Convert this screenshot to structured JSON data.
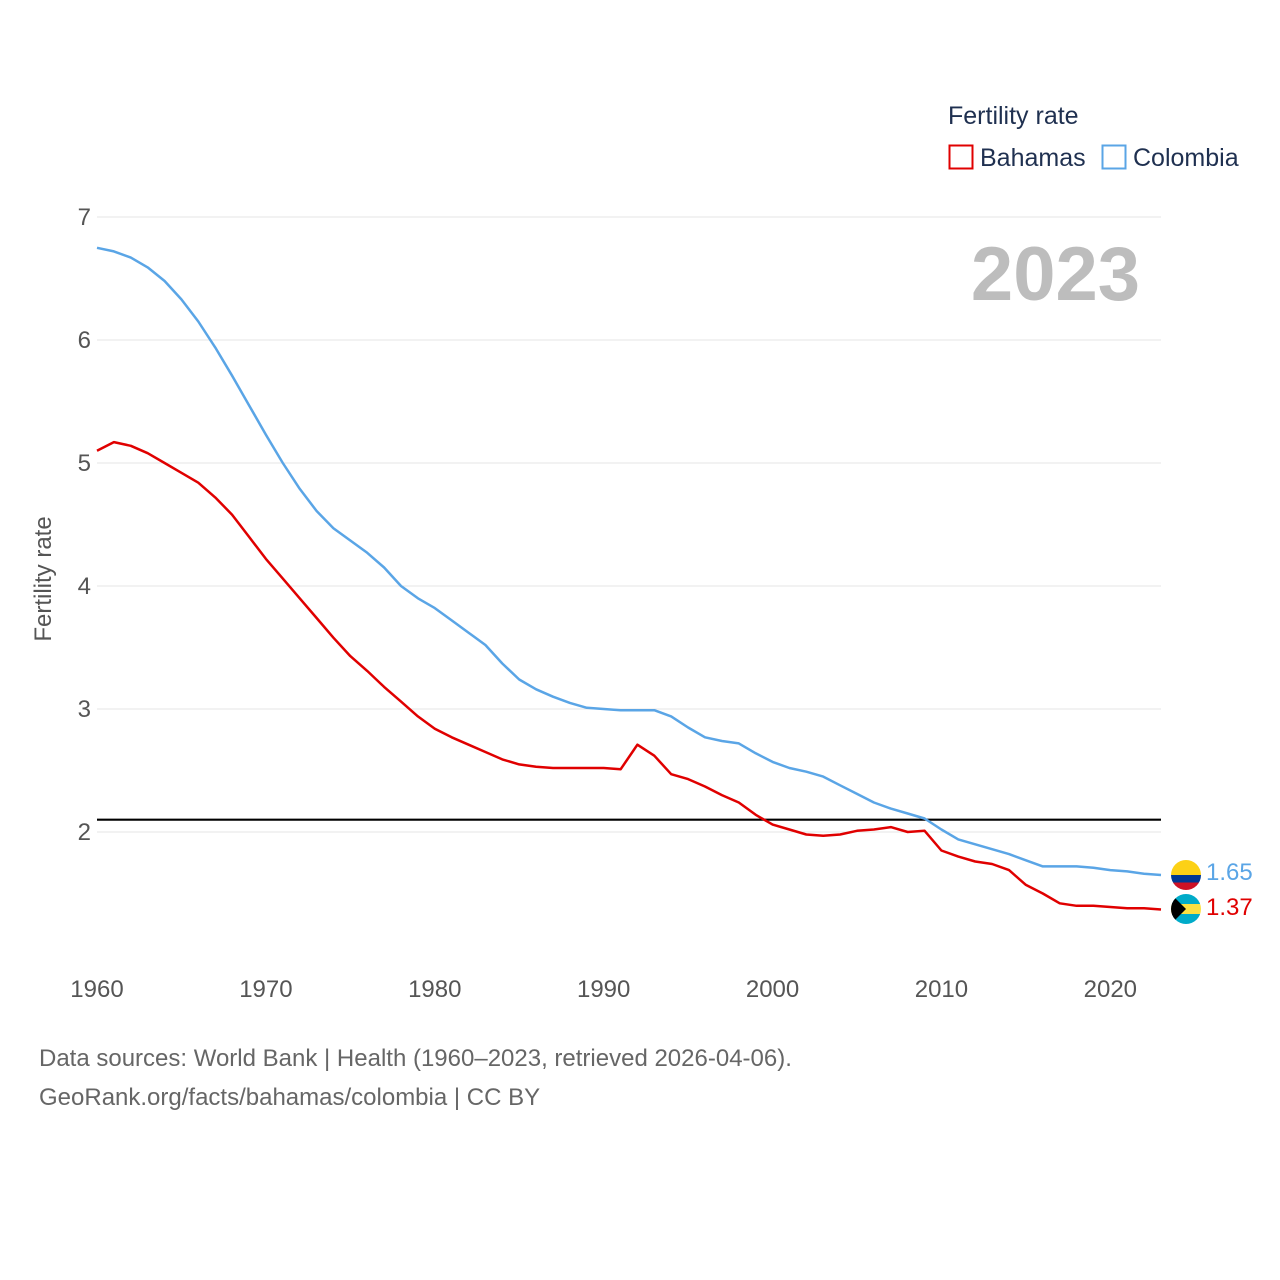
{
  "chart_data": {
    "type": "line",
    "title": "Fertility rate",
    "ylabel": "Fertility rate",
    "xlabel": "",
    "year_display": "2023",
    "xlim": [
      1960,
      2023
    ],
    "ylim": [
      1,
      7
    ],
    "xticks": [
      1960,
      1970,
      1980,
      1990,
      2000,
      2010,
      2020
    ],
    "yticks": [
      2,
      3,
      4,
      5,
      6,
      7
    ],
    "grid": true,
    "legend_position": "top-right",
    "reference_line": {
      "y": 2.1,
      "color": "#000000"
    },
    "series": [
      {
        "name": "Bahamas",
        "color": "#e00000",
        "end_label": "1.37",
        "x": [
          1960,
          1961,
          1962,
          1963,
          1964,
          1965,
          1966,
          1967,
          1968,
          1969,
          1970,
          1971,
          1972,
          1973,
          1974,
          1975,
          1976,
          1977,
          1978,
          1979,
          1980,
          1981,
          1982,
          1983,
          1984,
          1985,
          1986,
          1987,
          1988,
          1989,
          1990,
          1991,
          1992,
          1993,
          1994,
          1995,
          1996,
          1997,
          1998,
          1999,
          2000,
          2001,
          2002,
          2003,
          2004,
          2005,
          2006,
          2007,
          2008,
          2009,
          2010,
          2011,
          2012,
          2013,
          2014,
          2015,
          2016,
          2017,
          2018,
          2019,
          2020,
          2021,
          2022,
          2023
        ],
        "y": [
          5.1,
          5.17,
          5.14,
          5.08,
          5.0,
          4.92,
          4.84,
          4.72,
          4.58,
          4.4,
          4.22,
          4.06,
          3.9,
          3.74,
          3.58,
          3.43,
          3.31,
          3.18,
          3.06,
          2.94,
          2.84,
          2.77,
          2.71,
          2.65,
          2.59,
          2.55,
          2.53,
          2.52,
          2.52,
          2.52,
          2.52,
          2.51,
          2.71,
          2.62,
          2.47,
          2.43,
          2.37,
          2.3,
          2.24,
          2.14,
          2.06,
          2.02,
          1.98,
          1.97,
          1.98,
          2.01,
          2.02,
          2.04,
          2.0,
          2.01,
          1.85,
          1.8,
          1.76,
          1.74,
          1.69,
          1.57,
          1.5,
          1.42,
          1.4,
          1.4,
          1.39,
          1.38,
          1.38,
          1.37
        ]
      },
      {
        "name": "Colombia",
        "color": "#5aa5e6",
        "end_label": "1.65",
        "x": [
          1960,
          1961,
          1962,
          1963,
          1964,
          1965,
          1966,
          1967,
          1968,
          1969,
          1970,
          1971,
          1972,
          1973,
          1974,
          1975,
          1976,
          1977,
          1978,
          1979,
          1980,
          1981,
          1982,
          1983,
          1984,
          1985,
          1986,
          1987,
          1988,
          1989,
          1990,
          1991,
          1992,
          1993,
          1994,
          1995,
          1996,
          1997,
          1998,
          1999,
          2000,
          2001,
          2002,
          2003,
          2004,
          2005,
          2006,
          2007,
          2008,
          2009,
          2010,
          2011,
          2012,
          2013,
          2014,
          2015,
          2016,
          2017,
          2018,
          2019,
          2020,
          2021,
          2022,
          2023
        ],
        "y": [
          6.75,
          6.72,
          6.67,
          6.59,
          6.48,
          6.33,
          6.15,
          5.94,
          5.71,
          5.47,
          5.23,
          5.0,
          4.79,
          4.61,
          4.47,
          4.37,
          4.27,
          4.15,
          4.0,
          3.9,
          3.82,
          3.72,
          3.62,
          3.52,
          3.37,
          3.24,
          3.16,
          3.1,
          3.05,
          3.01,
          3.0,
          2.99,
          2.99,
          2.99,
          2.94,
          2.85,
          2.77,
          2.74,
          2.72,
          2.64,
          2.57,
          2.52,
          2.49,
          2.45,
          2.38,
          2.31,
          2.24,
          2.19,
          2.15,
          2.11,
          2.02,
          1.94,
          1.9,
          1.86,
          1.82,
          1.77,
          1.72,
          1.72,
          1.72,
          1.71,
          1.69,
          1.68,
          1.66,
          1.65
        ]
      }
    ]
  },
  "legend": {
    "title": "Fertility rate",
    "items": [
      "Bahamas",
      "Colombia"
    ]
  },
  "source": {
    "line1": "Data sources: World Bank | Health (1960–2023, retrieved 2026-04-06).",
    "line2": "GeoRank.org/facts/bahamas/colombia | CC BY"
  },
  "flags": {
    "colombia": "colombia-flag-icon",
    "bahamas": "bahamas-flag-icon"
  }
}
